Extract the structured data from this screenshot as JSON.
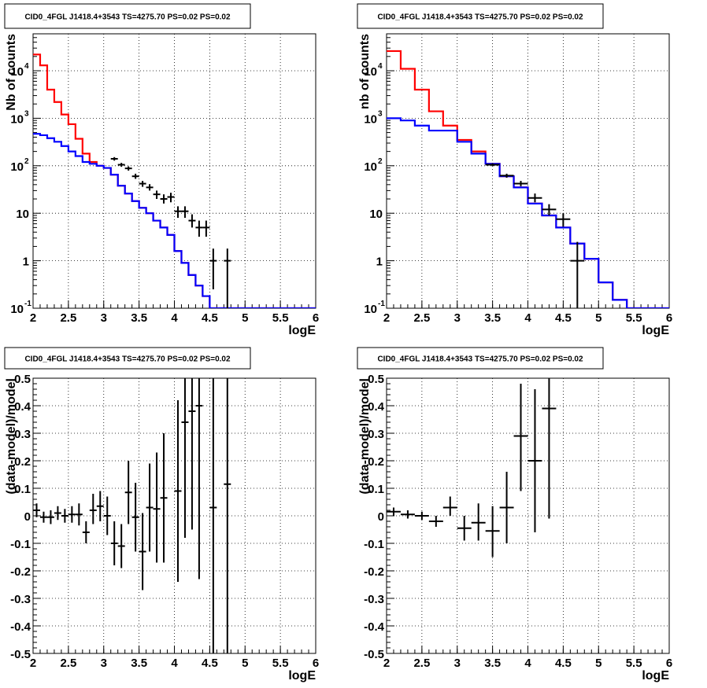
{
  "chart_data": [
    {
      "type": "line",
      "title": "CID0_4FGL J1418.4+3543 TS=4275.70 PS=0.02 PS=0.02",
      "xlabel": "logE",
      "ylabel": "Nb of counts",
      "xlim": [
        2,
        6
      ],
      "ylim": [
        0.1,
        60000
      ],
      "yscale": "log",
      "grid": true,
      "x_ticks": [
        "2",
        "2.5",
        "3",
        "3.5",
        "4",
        "4.5",
        "5",
        "5.5",
        "6"
      ],
      "y_ticks": [
        {
          "base": "10",
          "exp": "-1",
          "value": 0.1
        },
        {
          "base": "1",
          "exp": "",
          "value": 1
        },
        {
          "base": "10",
          "exp": "",
          "value": 10
        },
        {
          "base": "10",
          "exp": "2",
          "value": 100
        },
        {
          "base": "10",
          "exp": "3",
          "value": 1000
        },
        {
          "base": "10",
          "exp": "4",
          "value": 10000
        }
      ],
      "bin_edges": [
        2.0,
        2.1,
        2.2,
        2.3,
        2.4,
        2.5,
        2.6,
        2.7,
        2.8,
        2.9,
        3.0,
        3.1,
        3.2,
        3.3,
        3.4,
        3.5,
        3.6,
        3.7,
        3.8,
        3.9,
        4.0,
        4.1,
        4.2,
        4.3,
        4.4,
        4.5,
        4.6,
        4.7,
        4.8,
        4.9,
        5.0,
        5.1,
        5.2,
        5.3,
        5.4,
        5.5,
        5.6,
        5.7,
        5.8,
        5.9,
        6.0
      ],
      "series": [
        {
          "color": "#ff0000",
          "values": [
            22000,
            13000,
            4000,
            2200,
            1200,
            750,
            370,
            180,
            120,
            100,
            90,
            65,
            38,
            26,
            18,
            13,
            10,
            7,
            5,
            3.5,
            1.6,
            0.9,
            0.5,
            0.3,
            0.18,
            0.1,
            0.1,
            0.1,
            0.1,
            0.1,
            0.1,
            0.1,
            0.1,
            0.1,
            0.1,
            0.1,
            0.1,
            0.1,
            0.1,
            0.1
          ]
        },
        {
          "color": "#0000ff",
          "values": [
            470,
            440,
            380,
            320,
            260,
            200,
            160,
            120,
            110,
            100,
            90,
            65,
            38,
            26,
            18,
            13,
            10,
            7,
            5,
            3.5,
            1.6,
            0.9,
            0.5,
            0.3,
            0.18,
            0.1,
            0.1,
            0.1,
            0.1,
            0.1,
            0.1,
            0.1,
            0.1,
            0.1,
            0.1,
            0.1,
            0.1,
            0.1,
            0.1,
            0.1
          ]
        }
      ],
      "data_points": [
        {
          "x": 3.15,
          "y": 140,
          "xerr": 0.05,
          "ylo": 128,
          "yhi": 152
        },
        {
          "x": 3.25,
          "y": 105,
          "xerr": 0.05,
          "ylo": 95,
          "yhi": 115
        },
        {
          "x": 3.35,
          "y": 88,
          "xerr": 0.05,
          "ylo": 79,
          "yhi": 97
        },
        {
          "x": 3.45,
          "y": 60,
          "xerr": 0.05,
          "ylo": 53,
          "yhi": 68
        },
        {
          "x": 3.55,
          "y": 42,
          "xerr": 0.05,
          "ylo": 36,
          "yhi": 48
        },
        {
          "x": 3.65,
          "y": 35,
          "xerr": 0.05,
          "ylo": 30,
          "yhi": 41
        },
        {
          "x": 3.75,
          "y": 25,
          "xerr": 0.05,
          "ylo": 20,
          "yhi": 30
        },
        {
          "x": 3.85,
          "y": 20,
          "xerr": 0.05,
          "ylo": 16,
          "yhi": 25
        },
        {
          "x": 3.95,
          "y": 22,
          "xerr": 0.05,
          "ylo": 17,
          "yhi": 27
        },
        {
          "x": 4.05,
          "y": 11,
          "xerr": 0.05,
          "ylo": 8,
          "yhi": 14
        },
        {
          "x": 4.15,
          "y": 11,
          "xerr": 0.05,
          "ylo": 8,
          "yhi": 14
        },
        {
          "x": 4.25,
          "y": 7,
          "xerr": 0.05,
          "ylo": 5,
          "yhi": 9.5
        },
        {
          "x": 4.35,
          "y": 5,
          "xerr": 0.05,
          "ylo": 3.2,
          "yhi": 7
        },
        {
          "x": 4.45,
          "y": 5,
          "xerr": 0.05,
          "ylo": 3.2,
          "yhi": 7
        },
        {
          "x": 4.55,
          "y": 1,
          "xerr": 0.05,
          "ylo": 0.25,
          "yhi": 1.8
        },
        {
          "x": 4.75,
          "y": 1,
          "xerr": 0.05,
          "ylo": 0.1,
          "yhi": 1.8
        }
      ]
    },
    {
      "type": "line",
      "title": "CID0_4FGL J1418.4+3543 TS=4275.70 PS=0.02 PS=0.02",
      "xlabel": "logE",
      "ylabel": "nb of counts",
      "xlim": [
        2,
        6
      ],
      "ylim": [
        0.1,
        60000
      ],
      "yscale": "log",
      "grid": true,
      "x_ticks": [
        "2",
        "2.5",
        "3",
        "3.5",
        "4",
        "4.5",
        "5",
        "5.5",
        "6"
      ],
      "y_ticks": [
        {
          "base": "10",
          "exp": "-1",
          "value": 0.1
        },
        {
          "base": "1",
          "exp": "",
          "value": 1
        },
        {
          "base": "10",
          "exp": "",
          "value": 10
        },
        {
          "base": "10",
          "exp": "2",
          "value": 100
        },
        {
          "base": "10",
          "exp": "3",
          "value": 1000
        },
        {
          "base": "10",
          "exp": "4",
          "value": 10000
        }
      ],
      "bin_edges": [
        2.0,
        2.2,
        2.4,
        2.6,
        2.8,
        3.0,
        3.2,
        3.4,
        3.6,
        3.8,
        4.0,
        4.2,
        4.4,
        4.6,
        4.8,
        5.0,
        5.2,
        5.4,
        5.6,
        5.8,
        6.0
      ],
      "series": [
        {
          "color": "#ff0000",
          "values": [
            26000,
            11000,
            4000,
            1400,
            700,
            350,
            200,
            110,
            60,
            35,
            16,
            9,
            5,
            2.3,
            1.1,
            0.35,
            0.15,
            0.1,
            0.1,
            0.1
          ]
        },
        {
          "color": "#0000ff",
          "values": [
            1000,
            900,
            700,
            550,
            550,
            320,
            180,
            110,
            60,
            35,
            16,
            9,
            5,
            2.3,
            1.1,
            0.35,
            0.15,
            0.1,
            0.1,
            0.1
          ]
        }
      ],
      "data_points": [
        {
          "x": 3.5,
          "y": 105,
          "xerr": 0.1,
          "ylo": 98,
          "yhi": 112
        },
        {
          "x": 3.7,
          "y": 62,
          "xerr": 0.1,
          "ylo": 56,
          "yhi": 68
        },
        {
          "x": 3.9,
          "y": 42,
          "xerr": 0.1,
          "ylo": 37,
          "yhi": 48
        },
        {
          "x": 4.1,
          "y": 21,
          "xerr": 0.1,
          "ylo": 17,
          "yhi": 26
        },
        {
          "x": 4.3,
          "y": 12,
          "xerr": 0.1,
          "ylo": 9,
          "yhi": 15.5
        },
        {
          "x": 4.5,
          "y": 7.5,
          "xerr": 0.1,
          "ylo": 5.2,
          "yhi": 10
        },
        {
          "x": 4.7,
          "y": 1,
          "xerr": 0.1,
          "ylo": 0.1,
          "yhi": 2.5
        }
      ]
    },
    {
      "type": "scatter",
      "title": "CID0_4FGL J1418.4+3543 TS=4275.70 PS=0.02 PS=0.02",
      "xlabel": "logE",
      "ylabel": "(data-model)/model",
      "xlim": [
        2,
        6
      ],
      "ylim": [
        -0.5,
        0.5
      ],
      "grid": true,
      "x_ticks": [
        "2",
        "2.5",
        "3",
        "3.5",
        "4",
        "4.5",
        "5",
        "5.5",
        "6"
      ],
      "y_ticks": [
        "-0.5",
        "-0.4",
        "-0.3",
        "-0.2",
        "-0.1",
        "0",
        "0.1",
        "0.2",
        "0.3",
        "0.4",
        "0.5"
      ],
      "data_points": [
        {
          "x": 2.05,
          "y": 0.02,
          "xerr": 0.05,
          "ylo": -0.005,
          "yhi": 0.045
        },
        {
          "x": 2.15,
          "y": -0.005,
          "xerr": 0.05,
          "ylo": -0.025,
          "yhi": 0.015
        },
        {
          "x": 2.25,
          "y": -0.005,
          "xerr": 0.05,
          "ylo": -0.03,
          "yhi": 0.02
        },
        {
          "x": 2.35,
          "y": 0.01,
          "xerr": 0.05,
          "ylo": -0.015,
          "yhi": 0.035
        },
        {
          "x": 2.45,
          "y": 0.0,
          "xerr": 0.05,
          "ylo": -0.025,
          "yhi": 0.025
        },
        {
          "x": 2.55,
          "y": 0.005,
          "xerr": 0.05,
          "ylo": -0.025,
          "yhi": 0.035
        },
        {
          "x": 2.65,
          "y": 0.005,
          "xerr": 0.05,
          "ylo": -0.035,
          "yhi": 0.045
        },
        {
          "x": 2.75,
          "y": -0.06,
          "xerr": 0.05,
          "ylo": -0.1,
          "yhi": -0.02
        },
        {
          "x": 2.85,
          "y": 0.02,
          "xerr": 0.05,
          "ylo": -0.03,
          "yhi": 0.08
        },
        {
          "x": 2.95,
          "y": 0.035,
          "xerr": 0.05,
          "ylo": -0.02,
          "yhi": 0.09
        },
        {
          "x": 3.05,
          "y": 0.0,
          "xerr": 0.05,
          "ylo": -0.07,
          "yhi": 0.07
        },
        {
          "x": 3.15,
          "y": -0.1,
          "xerr": 0.05,
          "ylo": -0.18,
          "yhi": -0.02
        },
        {
          "x": 3.25,
          "y": -0.11,
          "xerr": 0.05,
          "ylo": -0.19,
          "yhi": -0.03
        },
        {
          "x": 3.35,
          "y": 0.085,
          "xerr": 0.05,
          "ylo": -0.03,
          "yhi": 0.2
        },
        {
          "x": 3.45,
          "y": -0.005,
          "xerr": 0.05,
          "ylo": -0.13,
          "yhi": 0.12
        },
        {
          "x": 3.55,
          "y": -0.13,
          "xerr": 0.05,
          "ylo": -0.27,
          "yhi": 0.01
        },
        {
          "x": 3.65,
          "y": 0.03,
          "xerr": 0.05,
          "ylo": -0.13,
          "yhi": 0.19
        },
        {
          "x": 3.75,
          "y": 0.025,
          "xerr": 0.05,
          "ylo": -0.17,
          "yhi": 0.23
        },
        {
          "x": 3.85,
          "y": 0.065,
          "xerr": 0.05,
          "ylo": -0.17,
          "yhi": 0.3
        },
        {
          "x": 4.05,
          "y": 0.09,
          "xerr": 0.05,
          "ylo": -0.24,
          "yhi": 0.42
        },
        {
          "x": 4.15,
          "y": 0.34,
          "xerr": 0.05,
          "ylo": -0.08,
          "yhi": 0.5
        },
        {
          "x": 4.25,
          "y": 0.38,
          "xerr": 0.05,
          "ylo": -0.05,
          "yhi": 0.5
        },
        {
          "x": 4.35,
          "y": 0.4,
          "xerr": 0.05,
          "ylo": -0.23,
          "yhi": 0.5
        },
        {
          "x": 4.55,
          "y": 0.03,
          "xerr": 0.05,
          "ylo": -0.5,
          "yhi": 0.5
        },
        {
          "x": 4.75,
          "y": 0.115,
          "xerr": 0.05,
          "ylo": -0.5,
          "yhi": 0.5
        }
      ]
    },
    {
      "type": "scatter",
      "title": "CID0_4FGL J1418.4+3543 TS=4275.70 PS=0.02 PS=0.02",
      "xlabel": "logE",
      "ylabel": "(data-model)/model",
      "xlim": [
        2,
        6
      ],
      "ylim": [
        -0.5,
        0.5
      ],
      "grid": true,
      "x_ticks": [
        "2",
        "2.5",
        "3",
        "3.5",
        "4",
        "4.5",
        "5",
        "5.5",
        "6"
      ],
      "y_ticks": [
        "-0.5",
        "-0.4",
        "-0.3",
        "-0.2",
        "-0.1",
        "0",
        "0.1",
        "0.2",
        "0.3",
        "0.4",
        "0.5"
      ],
      "data_points": [
        {
          "x": 2.1,
          "y": 0.015,
          "xerr": 0.1,
          "ylo": 0.0,
          "yhi": 0.03
        },
        {
          "x": 2.3,
          "y": 0.005,
          "xerr": 0.1,
          "ylo": -0.01,
          "yhi": 0.02
        },
        {
          "x": 2.5,
          "y": 0.0,
          "xerr": 0.1,
          "ylo": -0.015,
          "yhi": 0.015
        },
        {
          "x": 2.7,
          "y": -0.02,
          "xerr": 0.1,
          "ylo": -0.04,
          "yhi": 0.0
        },
        {
          "x": 2.9,
          "y": 0.03,
          "xerr": 0.1,
          "ylo": 0.0,
          "yhi": 0.07
        },
        {
          "x": 3.1,
          "y": -0.045,
          "xerr": 0.1,
          "ylo": -0.09,
          "yhi": 0.0
        },
        {
          "x": 3.3,
          "y": -0.025,
          "xerr": 0.1,
          "ylo": -0.09,
          "yhi": 0.045
        },
        {
          "x": 3.5,
          "y": -0.055,
          "xerr": 0.1,
          "ylo": -0.15,
          "yhi": 0.035
        },
        {
          "x": 3.7,
          "y": 0.03,
          "xerr": 0.1,
          "ylo": -0.1,
          "yhi": 0.16
        },
        {
          "x": 3.9,
          "y": 0.29,
          "xerr": 0.1,
          "ylo": 0.09,
          "yhi": 0.48
        },
        {
          "x": 4.1,
          "y": 0.2,
          "xerr": 0.1,
          "ylo": -0.06,
          "yhi": 0.46
        },
        {
          "x": 4.3,
          "y": 0.39,
          "xerr": 0.1,
          "ylo": -0.01,
          "yhi": 0.5
        }
      ]
    }
  ]
}
